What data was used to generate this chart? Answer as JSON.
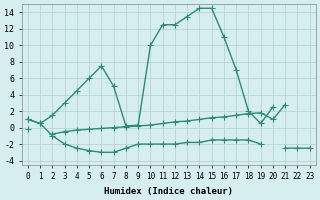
{
  "x": [
    0,
    1,
    2,
    3,
    4,
    5,
    6,
    7,
    8,
    9,
    10,
    11,
    12,
    13,
    14,
    15,
    16,
    17,
    18,
    19,
    20,
    21,
    22,
    23
  ],
  "line1": [
    1.0,
    0.5,
    1.5,
    3.0,
    4.5,
    6.0,
    7.5,
    5.0,
    0.2,
    0.3,
    10.0,
    12.5,
    12.5,
    13.5,
    14.5,
    14.5,
    11.0,
    7.0,
    2.0,
    0.5,
    2.5,
    null,
    null,
    null
  ],
  "line2": [
    1.0,
    0.5,
    -1.0,
    -2.0,
    -2.5,
    -2.8,
    -3.0,
    -3.0,
    -2.5,
    -2.0,
    -2.0,
    -2.0,
    -2.0,
    -1.8,
    -1.8,
    -1.5,
    -1.5,
    -1.5,
    -1.5,
    -2.0,
    null,
    -2.5,
    -2.5,
    -2.5
  ],
  "line3": [
    -0.2,
    null,
    -0.8,
    -0.5,
    -0.3,
    -0.2,
    -0.1,
    0.0,
    0.1,
    0.2,
    0.3,
    0.5,
    0.7,
    0.8,
    1.0,
    1.2,
    1.3,
    1.5,
    1.7,
    1.8,
    1.0,
    2.8,
    null,
    null
  ],
  "xlim": [
    -0.5,
    23.5
  ],
  "ylim": [
    -4.5,
    15.0
  ],
  "yticks": [
    -4,
    -2,
    0,
    2,
    4,
    6,
    8,
    10,
    12,
    14
  ],
  "xticks": [
    0,
    1,
    2,
    3,
    4,
    5,
    6,
    7,
    8,
    9,
    10,
    11,
    12,
    13,
    14,
    15,
    16,
    17,
    18,
    19,
    20,
    21,
    22,
    23
  ],
  "xlabel": "Humidex (Indice chaleur)",
  "line_color": "#2e8b7a",
  "bg_color": "#d6eeee",
  "grid_color": "#b0d0d0",
  "marker": "+",
  "marker_size": 4
}
